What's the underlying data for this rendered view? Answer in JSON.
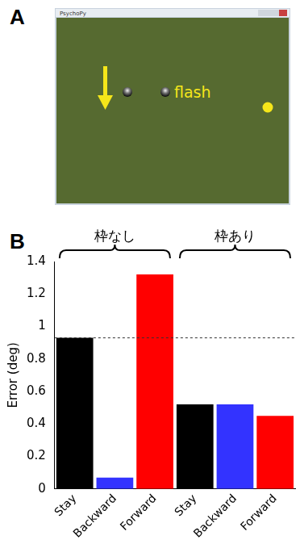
{
  "panel_labels": [
    "A",
    "B"
  ],
  "screenshot": {
    "window_title": "PsychoPy",
    "annotation": "flash"
  },
  "chart_data": {
    "type": "bar",
    "y_label": "Error (deg)",
    "categories": [
      "Stay",
      "Backward",
      "Forward",
      "Stay",
      "Backward",
      "Forward"
    ],
    "values": [
      0.93,
      0.07,
      1.32,
      0.52,
      0.52,
      0.45
    ],
    "colors": [
      "#000000",
      "#3333ff",
      "#ff0000",
      "#000000",
      "#3333ff",
      "#ff0000"
    ],
    "groups": [
      {
        "name": "枠なし",
        "size": 3
      },
      {
        "name": "枠あり",
        "size": 3
      }
    ],
    "reference_line": 0.93,
    "ylim": [
      0,
      1.4
    ],
    "yticks": [
      0,
      0.2,
      0.4,
      0.6,
      0.8,
      1,
      1.2,
      1.4
    ],
    "grid": false
  }
}
